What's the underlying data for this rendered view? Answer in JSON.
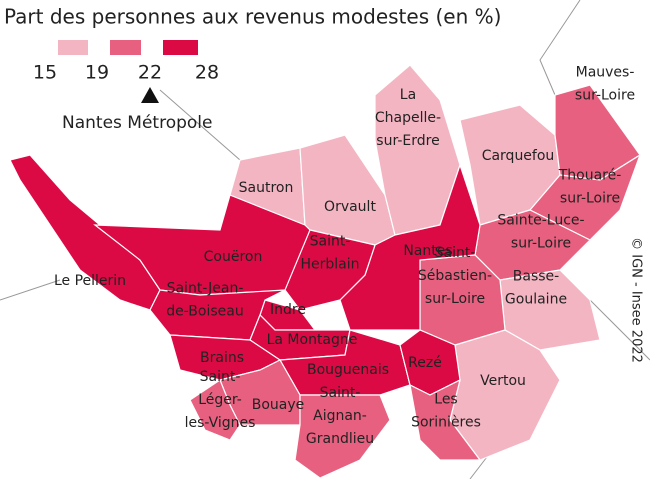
{
  "title": "Part des personnes aux revenus modestes (en %)",
  "legend": {
    "breaks": [
      15,
      19,
      22,
      28
    ],
    "colors": [
      "#f4b5c3",
      "#e8607f",
      "#db0a45"
    ],
    "reference": {
      "value": 22,
      "label": "Nantes Métropole"
    }
  },
  "credit": "© IGN - Insee 2022",
  "communes": [
    {
      "label": [
        "Le Pellerin"
      ],
      "color": "#db0a45"
    },
    {
      "label": [
        "Couëron"
      ],
      "color": "#db0a45"
    },
    {
      "label": [
        "Sautron"
      ],
      "color": "#f4b5c3"
    },
    {
      "label": [
        "Orvault"
      ],
      "color": "#f4b5c3"
    },
    {
      "label": [
        "La",
        "Chapelle-",
        "sur-Erdre"
      ],
      "color": "#f4b5c3"
    },
    {
      "label": [
        "Carquefou"
      ],
      "color": "#f4b5c3"
    },
    {
      "label": [
        "Mauves-",
        "sur-Loire"
      ],
      "color": "#e8607f"
    },
    {
      "label": [
        "Thouaré-",
        "sur-Loire"
      ],
      "color": "#e8607f"
    },
    {
      "label": [
        "Sainte-Luce-",
        "sur-Loire"
      ],
      "color": "#e8607f"
    },
    {
      "label": [
        "Basse-",
        "Goulaine"
      ],
      "color": "#f4b5c3"
    },
    {
      "label": [
        "Vertou"
      ],
      "color": "#f4b5c3"
    },
    {
      "label": [
        "Saint-",
        "Sébastien-",
        "sur-Loire"
      ],
      "color": "#e8607f"
    },
    {
      "label": [
        "Nantes"
      ],
      "color": "#db0a45"
    },
    {
      "label": [
        "Saint-",
        "Herblain"
      ],
      "color": "#db0a45"
    },
    {
      "label": [
        "Indre"
      ],
      "color": "#db0a45"
    },
    {
      "label": [
        "Saint-Jean-",
        "de-Boiseau"
      ],
      "color": "#db0a45"
    },
    {
      "label": [
        "La Montagne"
      ],
      "color": "#db0a45"
    },
    {
      "label": [
        "Brains"
      ],
      "color": "#db0a45"
    },
    {
      "label": [
        "Bouguenais"
      ],
      "color": "#db0a45"
    },
    {
      "label": [
        "Rezé"
      ],
      "color": "#db0a45"
    },
    {
      "label": [
        "Les",
        "Sorinières"
      ],
      "color": "#e8607f"
    },
    {
      "label": [
        "Bouaye"
      ],
      "color": "#e8607f"
    },
    {
      "label": [
        "Saint-",
        "Aignan-",
        "Grandlieu"
      ],
      "color": "#e8607f"
    },
    {
      "label": [
        "Saint-",
        "Léger-",
        "les-Vignes"
      ],
      "color": "#e8607f"
    }
  ]
}
